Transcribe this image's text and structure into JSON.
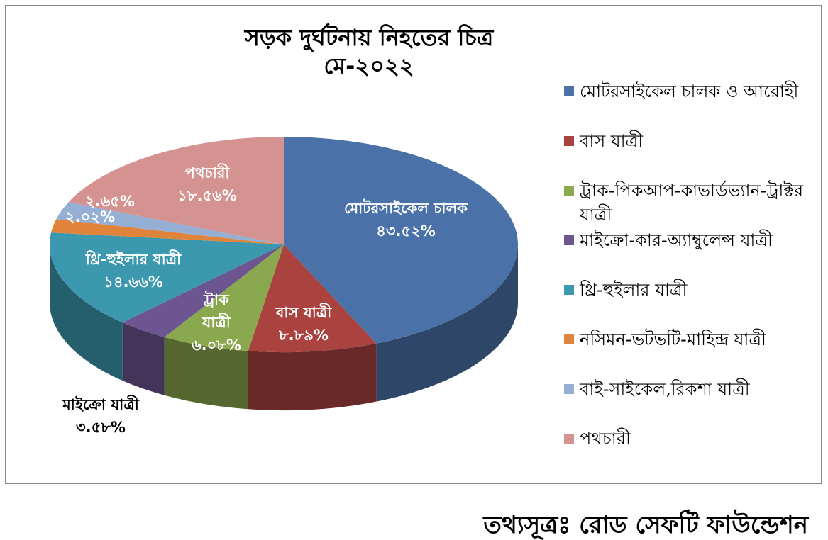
{
  "chart_data": {
    "type": "pie3d",
    "title": "সড়ক দুর্ঘটনায় নিহতের চিত্র",
    "subtitle": "মে-২০২২",
    "source": "তথ্যসূত্রঃ রোড সেফটি ফাউন্ডেশন",
    "categories": [
      "মোটরসাইকেল চালক ও আরোহী",
      "বাস যাত্রী",
      "ট্রাক-পিকআপ-কাভার্ডভ্যান-ট্রাক্টর যাত্রী",
      "মাইক্রো-কার-অ্যাম্বুলেন্স যাত্রী",
      "থ্রি-হুইলার যাত্রী",
      "নসিমন-ভটভটি-মাহিন্দ্র যাত্রী",
      "বাই-সাইকেল,রিকশা যাত্রী",
      "পথচারী"
    ],
    "values": [
      43.52,
      8.89,
      6.08,
      3.58,
      14.66,
      2.02,
      2.65,
      18.56
    ],
    "value_labels": [
      "৪৩.৫২%",
      "৮.৮৯%",
      "৬.০৮%",
      "৩.৫৮%",
      "১৪.৬৬%",
      "২.০২%",
      "২.৬৫%",
      "১৮.৫৬%"
    ],
    "data_label_names": [
      "মোটরসাইকেল চালক",
      "বাস যাত্রী",
      "ট্রাক যাত্রী",
      "মাইক্রো যাত্রী",
      "থ্রি-হুইলার যাত্রী",
      null,
      null,
      "পথচারী"
    ],
    "colors": [
      "#4a72a8",
      "#aa4240",
      "#8aa84e",
      "#6c5591",
      "#3c98ae",
      "#e0843b",
      "#95afd4",
      "#d49391"
    ],
    "legend": "right"
  }
}
